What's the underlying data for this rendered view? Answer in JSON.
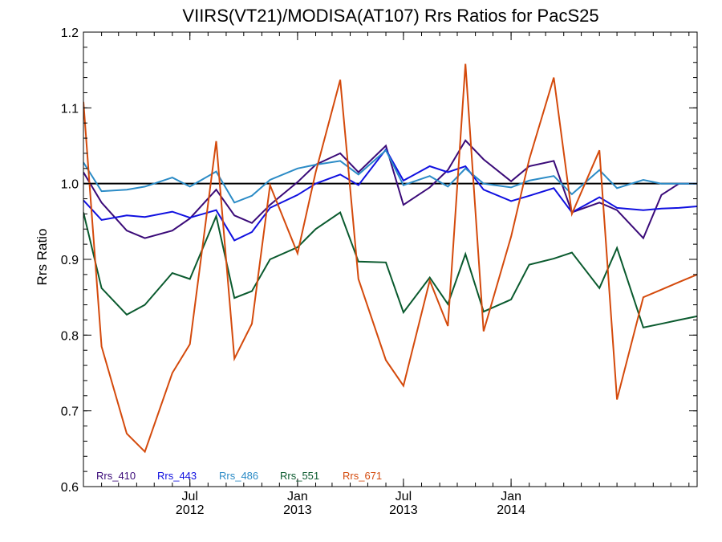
{
  "chart_data": {
    "type": "line",
    "title": "VIIRS(VT21)/MODISA(AT107)  Rrs Ratios for PacS25",
    "ylabel": "Rrs Ratio",
    "xlabel": "",
    "ylim": [
      0.6,
      1.2
    ],
    "xlim": [
      "2012-01-01",
      "2014-11-15"
    ],
    "y_ticks": [
      {
        "value": 0.6,
        "label": "0.6"
      },
      {
        "value": 0.7,
        "label": "0.7"
      },
      {
        "value": 0.8,
        "label": "0.8"
      },
      {
        "value": 0.9,
        "label": "0.9"
      },
      {
        "value": 1.0,
        "label": "1.0"
      },
      {
        "value": 1.1,
        "label": "1.1"
      },
      {
        "value": 1.2,
        "label": "1.2"
      }
    ],
    "x_ticks": [
      {
        "value": "2012-07-01",
        "line1": "Jul",
        "line2": "2012"
      },
      {
        "value": "2013-01-01",
        "line1": "Jan",
        "line2": "2013"
      },
      {
        "value": "2013-07-01",
        "line1": "Jul",
        "line2": "2013"
      },
      {
        "value": "2014-01-01",
        "line1": "Jan",
        "line2": "2014"
      }
    ],
    "reference_line": {
      "y": 1.0,
      "color": "#000000"
    },
    "legend_position": "bottom-left",
    "x": [
      "2012-01-01",
      "2012-02-01",
      "2012-03-15",
      "2012-04-15",
      "2012-06-01",
      "2012-07-01",
      "2012-08-15",
      "2012-09-15",
      "2012-10-15",
      "2012-11-15",
      "2013-01-01",
      "2013-02-01",
      "2013-03-15",
      "2013-04-15",
      "2013-06-01",
      "2013-07-01",
      "2013-08-15",
      "2013-09-15",
      "2013-10-15",
      "2013-11-15",
      "2014-01-01",
      "2014-02-01",
      "2014-03-15",
      "2014-04-15",
      "2014-06-01",
      "2014-07-01",
      "2014-08-15",
      "2014-09-15",
      "2014-10-15",
      "2014-11-15"
    ],
    "series": [
      {
        "name": "Rrs_410",
        "color": "#3a0a78",
        "values": [
          1.015,
          0.975,
          0.938,
          0.928,
          0.938,
          0.954,
          0.992,
          0.958,
          0.948,
          0.972,
          1.002,
          1.025,
          1.04,
          1.015,
          1.05,
          0.972,
          0.995,
          1.018,
          1.057,
          1.032,
          1.003,
          1.023,
          1.03,
          0.962,
          0.975,
          0.965,
          0.928,
          0.985,
          1.0,
          1.0
        ]
      },
      {
        "name": "Rrs_443",
        "color": "#1010e0",
        "values": [
          0.978,
          0.952,
          0.958,
          0.956,
          0.963,
          0.955,
          0.965,
          0.925,
          0.936,
          0.968,
          0.985,
          1.0,
          1.012,
          0.998,
          1.045,
          1.004,
          1.023,
          1.015,
          1.023,
          0.992,
          0.977,
          0.984,
          0.994,
          0.962,
          0.982,
          0.968,
          0.965,
          0.967,
          0.968,
          0.97
        ]
      },
      {
        "name": "Rrs_486",
        "color": "#2b8bc6",
        "values": [
          1.028,
          0.99,
          0.992,
          0.996,
          1.008,
          0.996,
          1.016,
          0.975,
          0.984,
          1.005,
          1.02,
          1.025,
          1.03,
          1.012,
          1.044,
          0.998,
          1.01,
          0.996,
          1.02,
          1.0,
          0.995,
          1.004,
          1.01,
          0.986,
          1.018,
          0.994,
          1.005,
          1.0,
          1.0,
          1.0
        ]
      },
      {
        "name": "Rrs_551",
        "color": "#0a5a2e",
        "values": [
          0.962,
          0.862,
          0.827,
          0.84,
          0.882,
          0.874,
          0.957,
          0.849,
          0.858,
          0.9,
          0.916,
          0.94,
          0.962,
          0.897,
          0.896,
          0.83,
          0.876,
          0.841,
          0.907,
          0.831,
          0.847,
          0.893,
          0.901,
          0.909,
          0.862,
          0.915,
          0.81,
          0.815,
          0.82,
          0.825
        ]
      },
      {
        "name": "Rrs_671",
        "color": "#d44a0c",
        "values": [
          1.108,
          0.785,
          0.67,
          0.646,
          0.75,
          0.788,
          1.056,
          0.769,
          0.815,
          0.998,
          0.908,
          1.015,
          1.137,
          0.874,
          0.767,
          0.733,
          0.872,
          0.812,
          1.158,
          0.805,
          0.93,
          1.032,
          1.14,
          0.96,
          1.044,
          0.715,
          0.85,
          0.86,
          0.87,
          0.88
        ]
      }
    ]
  }
}
